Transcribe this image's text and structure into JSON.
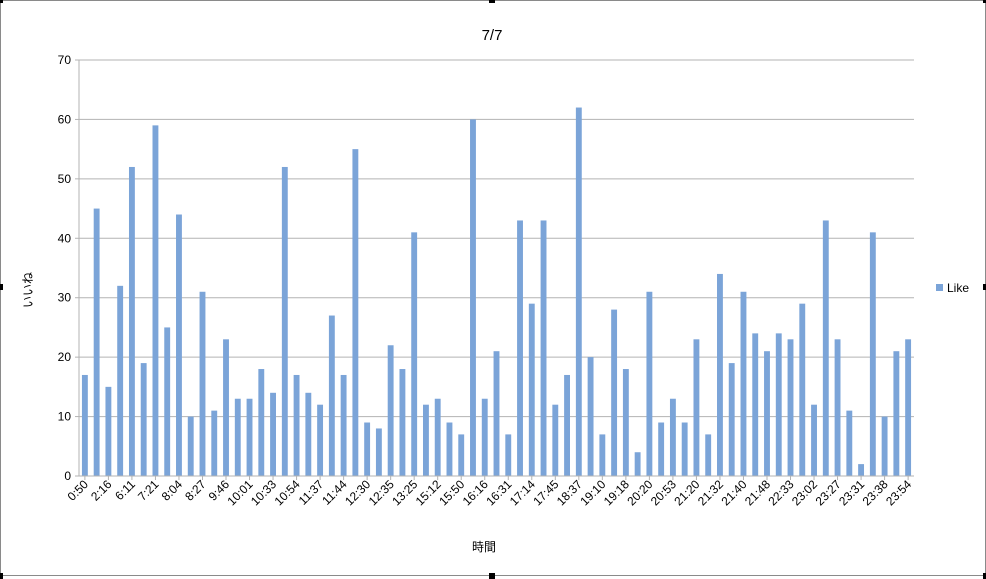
{
  "chart_data": {
    "type": "bar",
    "title": "7/7",
    "xlabel": "時間",
    "ylabel": "いいね",
    "ylim": [
      0,
      70
    ],
    "yticks": [
      0,
      10,
      20,
      30,
      40,
      50,
      60,
      70
    ],
    "grid": true,
    "legend_position": "right",
    "color": "#7ba4d8",
    "x_tick_labels": [
      "0:50",
      "2:16",
      "6:11",
      "7:21",
      "8:04",
      "8:27",
      "9:46",
      "10:01",
      "10:33",
      "10:54",
      "11:37",
      "11:44",
      "12:30",
      "12:35",
      "13:25",
      "15:12",
      "15:50",
      "16:16",
      "16:31",
      "17:14",
      "17:45",
      "18:37",
      "19:10",
      "19:18",
      "20:20",
      "20:53",
      "21:20",
      "21:32",
      "21:40",
      "21:48",
      "22:33",
      "23:02",
      "23:27",
      "23:31",
      "23:38",
      "23:54"
    ],
    "series": [
      {
        "name": "Like",
        "values": [
          17,
          45,
          15,
          32,
          52,
          19,
          59,
          25,
          44,
          10,
          31,
          11,
          23,
          13,
          13,
          18,
          14,
          52,
          17,
          14,
          12,
          27,
          17,
          55,
          9,
          8,
          22,
          18,
          41,
          12,
          13,
          9,
          7,
          60,
          13,
          21,
          7,
          43,
          29,
          43,
          12,
          17,
          62,
          20,
          7,
          28,
          18,
          4,
          31,
          9,
          13,
          9,
          23,
          7,
          34,
          19,
          31,
          24,
          21,
          24,
          23,
          29,
          12,
          43,
          23,
          11,
          2,
          41,
          10,
          21,
          23
        ]
      }
    ]
  }
}
